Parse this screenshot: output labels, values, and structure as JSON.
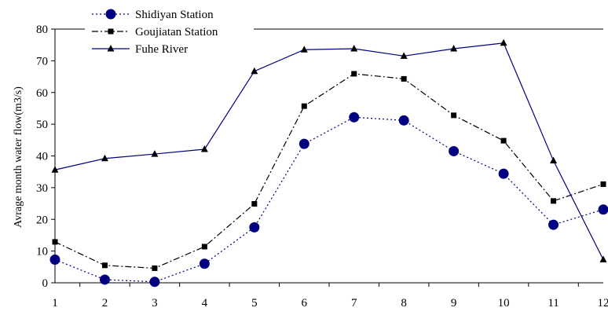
{
  "chart_data": {
    "type": "line",
    "title": "",
    "xlabel": "",
    "ylabel": "Avrage month water flow(m3/s)",
    "x": [
      1,
      2,
      3,
      4,
      5,
      6,
      7,
      8,
      9,
      10,
      11,
      12
    ],
    "x_ticks": [
      "1",
      "2",
      "3",
      "4",
      "5",
      "6",
      "7",
      "8",
      "9",
      "10",
      "11",
      "12"
    ],
    "ylim": [
      0,
      80
    ],
    "y_ticks": [
      "0",
      "10",
      "20",
      "30",
      "40",
      "50",
      "60",
      "70",
      "80"
    ],
    "grid": false,
    "legend_position": "top-left",
    "series": [
      {
        "name": "Shidiyan Station",
        "values": [
          7.3,
          1.0,
          0.3,
          6.0,
          17.5,
          43.8,
          52.2,
          51.2,
          41.5,
          34.4,
          18.3,
          23.1
        ],
        "color": "#000080",
        "line_style": "dotted",
        "marker": "circle"
      },
      {
        "name": "Goujiatan Station",
        "values": [
          12.9,
          5.5,
          4.6,
          11.4,
          24.9,
          55.7,
          65.9,
          64.3,
          52.8,
          44.8,
          25.8,
          31.1
        ],
        "color": "#000000",
        "line_style": "dash-dot",
        "marker": "square"
      },
      {
        "name": "Fuhe River",
        "values": [
          35.6,
          39.2,
          40.6,
          42.1,
          66.7,
          73.5,
          73.8,
          71.5,
          73.8,
          75.6,
          38.5,
          7.3
        ],
        "color": "#000080",
        "line_style": "solid",
        "marker": "triangle"
      }
    ]
  }
}
